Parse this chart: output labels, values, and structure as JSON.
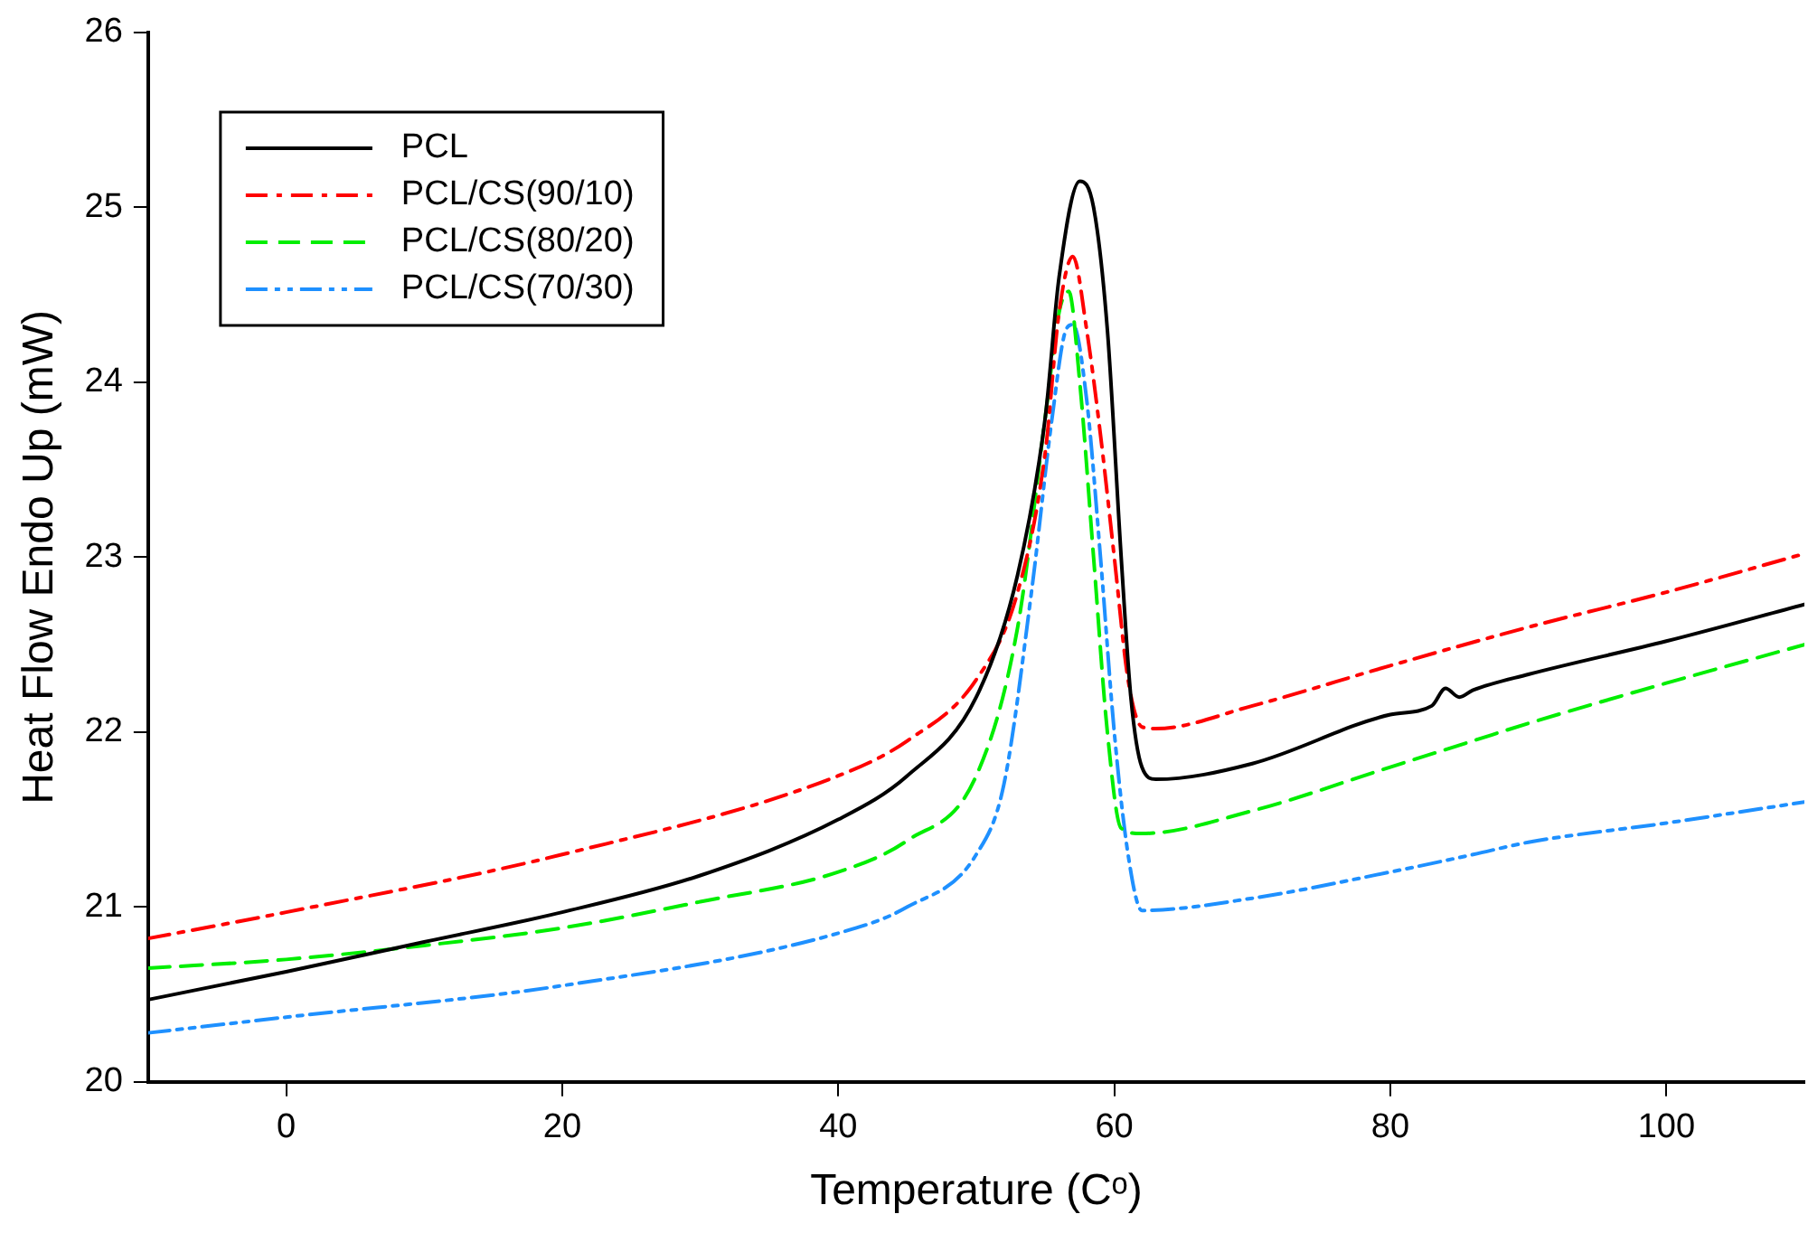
{
  "chart_data": {
    "type": "line",
    "xlabel": "Temperature (Cᵒ)",
    "ylabel": "Heat Flow Endo Up (mW)",
    "xlim": [
      -10,
      110
    ],
    "xticks": [
      0,
      20,
      40,
      60,
      80,
      100
    ],
    "ylim": [
      20,
      26
    ],
    "yticks": [
      20,
      21,
      22,
      23,
      24,
      25,
      26
    ],
    "grid": false,
    "legend": "top left",
    "marker": "none",
    "series": [
      {
        "name": "PCL",
        "color": "#000000",
        "line_style": "solid",
        "x": [
          -10,
          0,
          10,
          20,
          30,
          40,
          45,
          50,
          53,
          55,
          56,
          57.5,
          58.5,
          59.5,
          60.5,
          61.2,
          62,
          63,
          70,
          80,
          83,
          84,
          85,
          86,
          90,
          100,
          110
        ],
        "values": [
          20.47,
          20.63,
          20.8,
          20.97,
          21.18,
          21.5,
          21.75,
          22.2,
          22.9,
          23.8,
          24.6,
          25.15,
          25.0,
          24.3,
          23.0,
          22.2,
          21.8,
          21.73,
          21.82,
          22.1,
          22.15,
          22.25,
          22.2,
          22.24,
          22.33,
          22.52,
          22.73
        ]
      },
      {
        "name": "PCL/CS(90/10)",
        "color": "#ff0000",
        "line_style": "dashdot",
        "x": [
          -10,
          0,
          20,
          40,
          45,
          50,
          53,
          55,
          56,
          57,
          58,
          59,
          60,
          61,
          62,
          63,
          70,
          80,
          90,
          100,
          110
        ],
        "values": [
          20.82,
          20.97,
          21.3,
          21.75,
          21.95,
          22.3,
          22.8,
          23.6,
          24.4,
          24.72,
          24.3,
          23.7,
          23.0,
          22.3,
          22.03,
          22.02,
          22.15,
          22.38,
          22.6,
          22.8,
          23.02
        ]
      },
      {
        "name": "PCL/CS(80/20)",
        "color": "#00ee00",
        "line_style": "dashed",
        "x": [
          -10,
          0,
          10,
          20,
          30,
          40,
          45,
          50,
          53,
          55,
          56,
          56.7,
          57.5,
          58.5,
          59.5,
          60.5,
          62,
          70,
          80,
          86,
          90,
          100,
          110
        ],
        "values": [
          20.65,
          20.7,
          20.78,
          20.88,
          21.03,
          21.2,
          21.38,
          21.75,
          22.6,
          23.8,
          24.4,
          24.52,
          24.0,
          23.0,
          22.0,
          21.45,
          21.42,
          21.55,
          21.8,
          21.95,
          22.05,
          22.28,
          22.5
        ]
      },
      {
        "name": "PCL/CS(70/30)",
        "color": "#1e90ff",
        "line_style": "dashdotdot",
        "x": [
          -10,
          0,
          20,
          40,
          45,
          50,
          52,
          54,
          55.5,
          56.5,
          57,
          58,
          59,
          60,
          61,
          62,
          70,
          80,
          86,
          90,
          100,
          110
        ],
        "values": [
          20.28,
          20.37,
          20.55,
          20.85,
          21.0,
          21.3,
          21.7,
          22.8,
          23.8,
          24.3,
          24.33,
          23.9,
          23.0,
          22.0,
          21.3,
          20.98,
          21.05,
          21.2,
          21.3,
          21.37,
          21.48,
          21.6
        ]
      }
    ]
  }
}
